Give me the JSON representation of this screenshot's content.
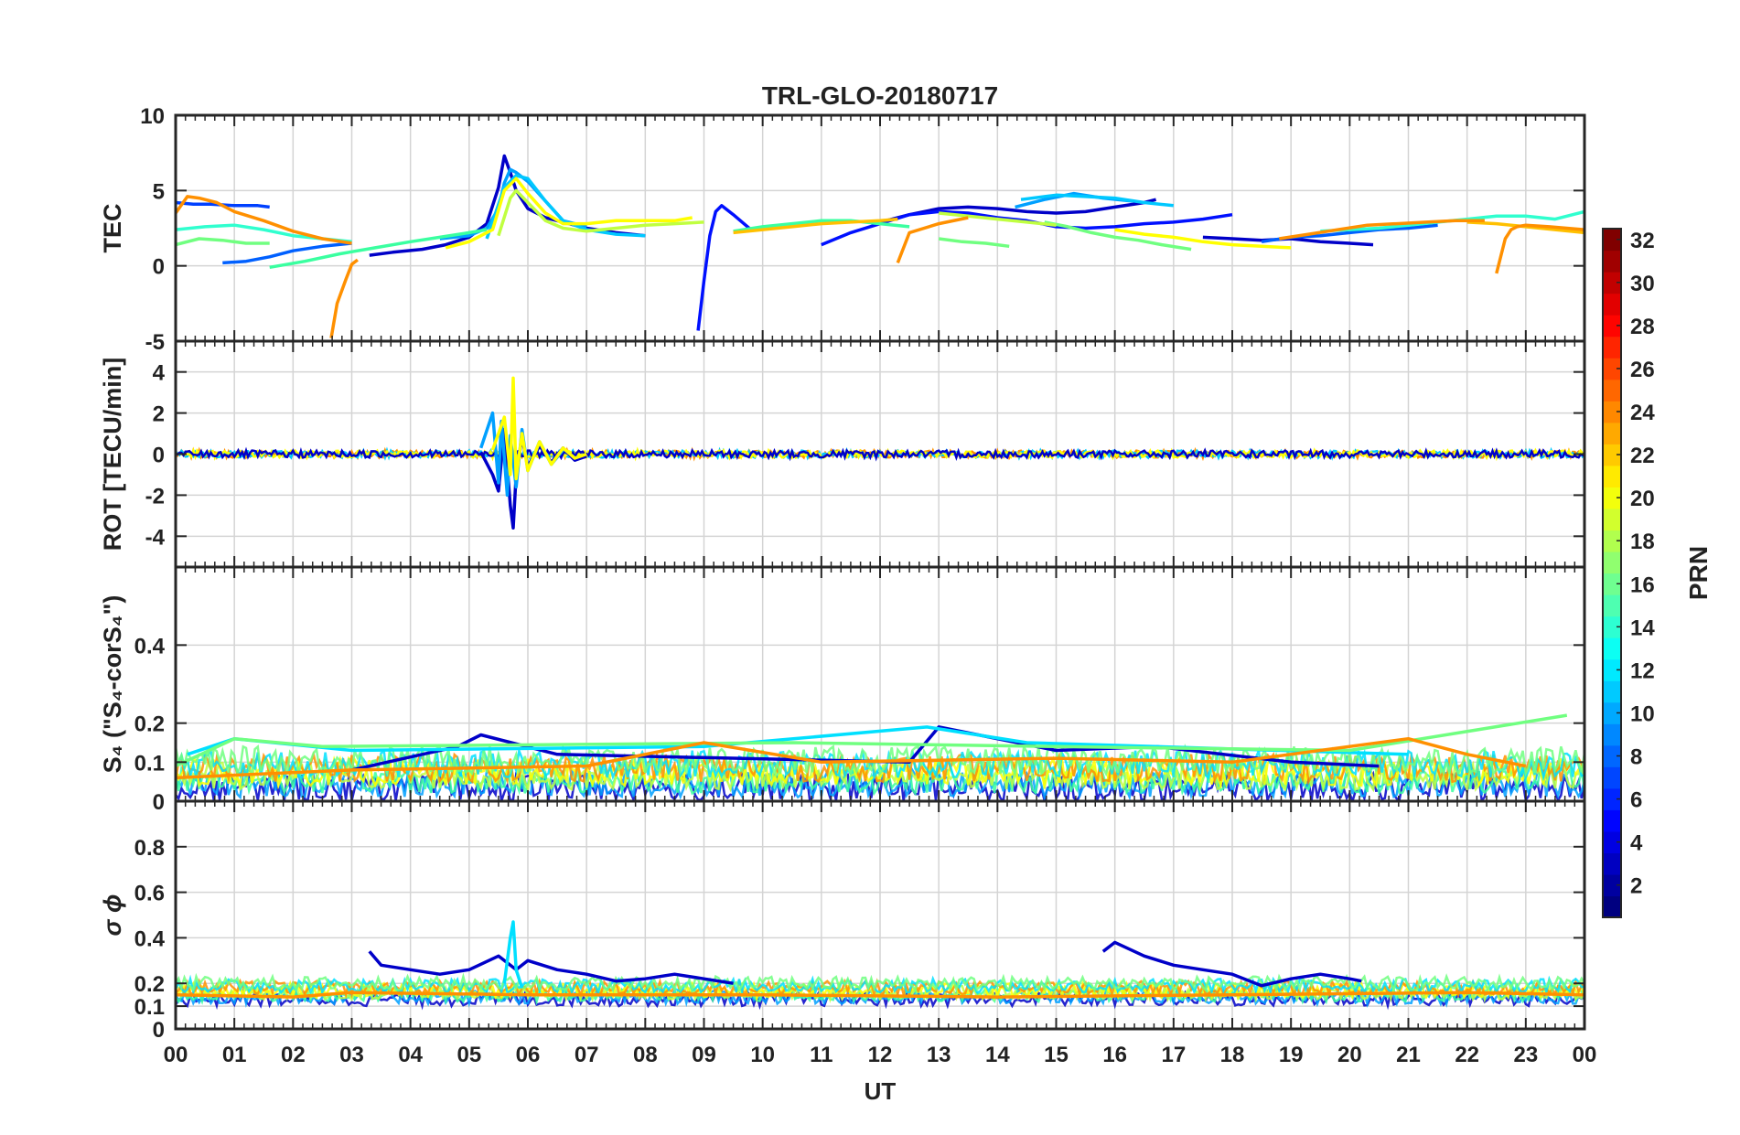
{
  "figure": {
    "title": "TRL-GLO-20180717",
    "xlabel": "UT",
    "x_ticks": [
      "00",
      "01",
      "02",
      "03",
      "04",
      "05",
      "06",
      "07",
      "08",
      "09",
      "10",
      "11",
      "12",
      "13",
      "14",
      "15",
      "16",
      "17",
      "18",
      "19",
      "20",
      "21",
      "22",
      "23",
      "00"
    ]
  },
  "colorbar": {
    "label": "PRN",
    "range": [
      1,
      32
    ],
    "ticks": [
      2,
      4,
      6,
      8,
      10,
      12,
      14,
      16,
      18,
      20,
      22,
      24,
      26,
      28,
      30,
      32
    ],
    "tick_labels": [
      "2",
      "4",
      "6",
      "8",
      "10",
      "12",
      "14",
      "16",
      "18",
      "20",
      "22",
      "24",
      "26",
      "28",
      "30",
      "32"
    ],
    "colormap": "jet"
  },
  "chart_data": [
    {
      "type": "line",
      "panel": "TEC",
      "title": "TRL-GLO-20180717",
      "xlabel": "",
      "ylabel": "TEC",
      "xlim": [
        0,
        24
      ],
      "ylim": [
        -5,
        10
      ],
      "yticks": [
        -5,
        0,
        5,
        10
      ],
      "ytick_labels": [
        "-5",
        "0",
        "5",
        "10"
      ],
      "grid": true,
      "series": [
        {
          "prn": 3,
          "color": "#0000c8",
          "x": [
            3.3,
            3.7,
            4.2,
            4.6,
            5.0,
            5.3,
            5.5,
            5.6,
            5.7,
            5.8,
            6.0,
            6.3,
            6.7,
            7.0,
            7.5,
            8.0
          ],
          "y": [
            0.7,
            0.9,
            1.1,
            1.4,
            1.9,
            2.8,
            5.2,
            7.3,
            6.2,
            5.0,
            3.8,
            3.2,
            2.8,
            2.5,
            2.2,
            2.0
          ]
        },
        {
          "prn": 3,
          "color": "#0000c8",
          "x": [
            12.0,
            12.5,
            13.0,
            13.5,
            14.0,
            14.5,
            15.0,
            15.5,
            16.0,
            16.5,
            16.7
          ],
          "y": [
            2.9,
            3.4,
            3.8,
            3.9,
            3.8,
            3.6,
            3.5,
            3.6,
            3.9,
            4.2,
            4.4
          ]
        },
        {
          "prn": 3,
          "color": "#0000c8",
          "x": [
            17.5,
            18.0,
            18.5,
            19.0,
            19.5,
            20.0,
            20.4
          ],
          "y": [
            1.9,
            1.8,
            1.7,
            1.8,
            1.6,
            1.5,
            1.4
          ]
        },
        {
          "prn": 5,
          "color": "#0010ff",
          "x": [
            8.9,
            9.0,
            9.1,
            9.2,
            9.3,
            9.5,
            9.8
          ],
          "y": [
            -4.3,
            -1.0,
            2.0,
            3.6,
            4.0,
            3.4,
            2.4
          ]
        },
        {
          "prn": 5,
          "color": "#0010ff",
          "x": [
            11.0,
            11.5,
            12.0,
            12.5,
            13.0,
            13.5,
            14.0,
            14.5,
            15.0,
            15.5,
            16.0,
            16.5,
            17.0,
            17.5,
            18.0
          ],
          "y": [
            1.4,
            2.2,
            2.8,
            3.4,
            3.6,
            3.5,
            3.2,
            3.0,
            2.6,
            2.5,
            2.6,
            2.8,
            2.9,
            3.1,
            3.4
          ]
        },
        {
          "prn": 6,
          "color": "#0040ff",
          "x": [
            0.0,
            0.3,
            0.6,
            1.0,
            1.4,
            1.6
          ],
          "y": [
            4.2,
            4.1,
            4.1,
            4.0,
            4.0,
            3.9
          ]
        },
        {
          "prn": 7,
          "color": "#0060ff",
          "x": [
            0.8,
            1.2,
            1.6,
            2.0,
            2.5,
            3.0
          ],
          "y": [
            0.2,
            0.3,
            0.6,
            1.0,
            1.3,
            1.5
          ]
        },
        {
          "prn": 7,
          "color": "#0060ff",
          "x": [
            18.5,
            19.0,
            19.5,
            20.0,
            20.5,
            21.0,
            21.5
          ],
          "y": [
            1.6,
            1.9,
            2.0,
            2.2,
            2.4,
            2.5,
            2.7
          ]
        },
        {
          "prn": 9,
          "color": "#00a0ff",
          "x": [
            4.5,
            5.0,
            5.3,
            5.5,
            5.6,
            5.7,
            5.8,
            6.0,
            6.3,
            6.6,
            7.0
          ],
          "y": [
            1.8,
            2.0,
            2.5,
            3.8,
            5.5,
            6.4,
            6.2,
            5.6,
            4.3,
            3.0,
            2.6
          ]
        },
        {
          "prn": 9,
          "color": "#00a0ff",
          "x": [
            14.3,
            14.8,
            15.3,
            15.8,
            16.3
          ],
          "y": [
            3.9,
            4.4,
            4.8,
            4.5,
            4.3
          ]
        },
        {
          "prn": 11,
          "color": "#00c8ff",
          "x": [
            5.3,
            5.6,
            5.8,
            6.0,
            6.3,
            6.6,
            7.0,
            7.5,
            8.0
          ],
          "y": [
            1.8,
            5.2,
            6.0,
            5.8,
            4.3,
            3.0,
            2.4,
            2.1,
            2.0
          ]
        },
        {
          "prn": 11,
          "color": "#00c8ff",
          "x": [
            14.4,
            15.0,
            15.5,
            16.0,
            16.5,
            17.0
          ],
          "y": [
            4.4,
            4.7,
            4.6,
            4.5,
            4.2,
            4.0
          ]
        },
        {
          "prn": 14,
          "color": "#30ffcf",
          "x": [
            0.0,
            0.5,
            1.0,
            1.5,
            2.0,
            2.5,
            3.0
          ],
          "y": [
            2.4,
            2.6,
            2.7,
            2.4,
            2.0,
            1.8,
            1.6
          ]
        },
        {
          "prn": 14,
          "color": "#30ffcf",
          "x": [
            19.5,
            20.0,
            20.5,
            21.0,
            21.5,
            22.0,
            22.5,
            23.0,
            23.5,
            24.0
          ],
          "y": [
            2.3,
            2.4,
            2.5,
            2.7,
            2.9,
            3.1,
            3.3,
            3.3,
            3.1,
            3.6
          ]
        },
        {
          "prn": 15,
          "color": "#3affa0",
          "x": [
            1.6,
            2.2,
            2.8,
            3.4,
            4.0,
            4.5,
            5.0,
            5.3
          ],
          "y": [
            -0.1,
            0.3,
            0.8,
            1.2,
            1.6,
            1.9,
            2.2,
            2.4
          ]
        },
        {
          "prn": 15,
          "color": "#3affa0",
          "x": [
            9.5,
            10.0,
            10.5,
            11.0,
            11.5,
            12.0,
            12.5
          ],
          "y": [
            2.3,
            2.6,
            2.8,
            3.0,
            3.0,
            2.8,
            2.6
          ]
        },
        {
          "prn": 16,
          "color": "#70ff80",
          "x": [
            0.0,
            0.4,
            0.8,
            1.2,
            1.6
          ],
          "y": [
            1.4,
            1.8,
            1.7,
            1.5,
            1.5
          ]
        },
        {
          "prn": 16,
          "color": "#70ff80",
          "x": [
            13.0,
            13.4,
            13.8,
            14.2
          ],
          "y": [
            1.8,
            1.6,
            1.5,
            1.3
          ]
        },
        {
          "prn": 16,
          "color": "#70ff80",
          "x": [
            14.8,
            15.2,
            15.6,
            16.0,
            16.4,
            16.8,
            17.3
          ],
          "y": [
            2.9,
            2.6,
            2.2,
            1.9,
            1.7,
            1.4,
            1.1
          ]
        },
        {
          "prn": 18,
          "color": "#c0ff40",
          "x": [
            5.5,
            5.7,
            5.8,
            6.0,
            6.3,
            6.6,
            7.0,
            7.5,
            8.0,
            8.5,
            9.0
          ],
          "y": [
            2.0,
            4.5,
            5.0,
            4.2,
            3.0,
            2.5,
            2.3,
            2.5,
            2.7,
            2.8,
            2.9
          ]
        },
        {
          "prn": 18,
          "color": "#c0ff40",
          "x": [
            13.0,
            13.5,
            14.0,
            14.5,
            15.0
          ],
          "y": [
            3.5,
            3.3,
            3.1,
            2.9,
            2.7
          ]
        },
        {
          "prn": 20,
          "color": "#ffff00",
          "x": [
            4.6,
            5.0,
            5.4,
            5.6,
            5.8,
            6.0,
            6.3,
            6.6,
            7.0,
            7.5,
            8.0,
            8.5,
            8.8
          ],
          "y": [
            1.2,
            1.6,
            2.4,
            5.0,
            5.8,
            4.8,
            3.5,
            2.8,
            2.8,
            3.0,
            3.0,
            3.0,
            3.2
          ]
        },
        {
          "prn": 20,
          "color": "#ffff00",
          "x": [
            16.0,
            16.5,
            17.0,
            17.5,
            18.0,
            18.5,
            19.0
          ],
          "y": [
            2.4,
            2.1,
            1.9,
            1.6,
            1.4,
            1.3,
            1.2
          ]
        },
        {
          "prn": 22,
          "color": "#ffc000",
          "x": [
            9.5,
            10.0,
            10.5,
            11.0,
            11.5,
            12.0,
            12.3
          ],
          "y": [
            2.2,
            2.4,
            2.6,
            2.8,
            2.9,
            3.0,
            3.1
          ]
        },
        {
          "prn": 22,
          "color": "#ffc000",
          "x": [
            22.0,
            22.5,
            23.0,
            23.5,
            24.0
          ],
          "y": [
            2.9,
            2.8,
            2.6,
            2.4,
            2.2
          ]
        },
        {
          "prn": 23,
          "color": "#ff9000",
          "x": [
            0.0,
            0.2,
            0.4,
            0.7,
            1.0,
            1.5,
            2.0,
            2.5,
            3.0
          ],
          "y": [
            3.5,
            4.6,
            4.5,
            4.2,
            3.6,
            3.0,
            2.3,
            1.8,
            1.5
          ]
        },
        {
          "prn": 23,
          "color": "#ff9000",
          "x": [
            2.65,
            2.75,
            2.9,
            3.0,
            3.1
          ],
          "y": [
            -4.8,
            -2.5,
            -0.9,
            0.1,
            0.4
          ]
        },
        {
          "prn": 23,
          "color": "#ff9000",
          "x": [
            12.3,
            12.5,
            13.0,
            13.5
          ],
          "y": [
            0.2,
            2.2,
            2.8,
            3.2
          ]
        },
        {
          "prn": 23,
          "color": "#ff9000",
          "x": [
            18.8,
            19.3,
            19.8,
            20.3,
            20.8,
            21.3,
            21.8,
            22.3
          ],
          "y": [
            1.8,
            2.1,
            2.4,
            2.7,
            2.8,
            2.9,
            3.0,
            3.0
          ]
        },
        {
          "prn": 23,
          "color": "#ff9000",
          "x": [
            22.5,
            22.65,
            22.75,
            22.85,
            23.0,
            23.4,
            24.0
          ],
          "y": [
            -0.5,
            1.8,
            2.4,
            2.6,
            2.7,
            2.6,
            2.4
          ]
        }
      ]
    },
    {
      "type": "line",
      "panel": "ROT",
      "ylabel": "ROT [TECU/min]",
      "xlim": [
        0,
        24
      ],
      "ylim": [
        -5.5,
        5.5
      ],
      "yticks": [
        -4,
        -2,
        0,
        2,
        4
      ],
      "ytick_labels": [
        "-4",
        "-2",
        "0",
        "2",
        "4"
      ],
      "grid": true,
      "series": [
        {
          "prn": 3,
          "color": "#0000c8",
          "x": [
            5.2,
            5.4,
            5.5,
            5.6,
            5.7,
            5.75,
            5.8,
            5.9,
            6.0,
            6.2,
            6.4,
            6.6,
            6.8,
            7.0
          ],
          "y": [
            0.1,
            -1.0,
            -1.8,
            1.2,
            -2.5,
            -3.6,
            -1.0,
            0.8,
            -0.6,
            0.4,
            -0.4,
            0.3,
            -0.3,
            -0.1
          ]
        },
        {
          "prn": 9,
          "color": "#00a0ff",
          "x": [
            5.2,
            5.4,
            5.5,
            5.55,
            5.65,
            5.7,
            5.8,
            5.9,
            6.0,
            6.2,
            6.4,
            6.6
          ],
          "y": [
            0.3,
            2.0,
            -1.4,
            1.6,
            -2.0,
            0.9,
            -1.6,
            1.2,
            -0.8,
            0.6,
            -0.5,
            0.2
          ]
        },
        {
          "prn": 20,
          "color": "#ffff00",
          "x": [
            5.4,
            5.6,
            5.7,
            5.75,
            5.8,
            5.9,
            6.0,
            6.2,
            6.4,
            6.6,
            6.8,
            7.0
          ],
          "y": [
            0.2,
            1.8,
            -1.0,
            3.7,
            -1.2,
            1.0,
            -0.8,
            0.6,
            -0.5,
            0.3,
            -0.2,
            0.0
          ]
        }
      ]
    },
    {
      "type": "line",
      "panel": "S4",
      "ylabel": "S₄ (\"S₄-corS₄\")",
      "xlim": [
        0,
        24
      ],
      "ylim": [
        0,
        0.6
      ],
      "yticks": [
        0,
        0.1,
        0.2,
        0.4
      ],
      "ytick_labels": [
        "0",
        "0.1",
        "0.2",
        "0.4"
      ],
      "grid": true,
      "series": [
        {
          "prn": 3,
          "color": "#0000c8",
          "x": [
            3.0,
            4.8,
            5.2,
            6.5,
            12.5,
            13.0,
            15.0,
            16.7,
            19.0,
            20.5
          ],
          "y": [
            0.08,
            0.14,
            0.17,
            0.12,
            0.1,
            0.19,
            0.13,
            0.14,
            0.1,
            0.09
          ]
        },
        {
          "prn": 12,
          "color": "#00e0ff",
          "x": [
            0.2,
            1.0,
            3.0,
            9.0,
            12.8,
            14.5,
            21.0
          ],
          "y": [
            0.12,
            0.16,
            0.13,
            0.14,
            0.19,
            0.15,
            0.12
          ]
        },
        {
          "prn": 16,
          "color": "#70ff80",
          "x": [
            0.0,
            1.0,
            2.5,
            10.5,
            15.0,
            20.0,
            23.7
          ],
          "y": [
            0.09,
            0.16,
            0.14,
            0.15,
            0.14,
            0.13,
            0.22
          ]
        },
        {
          "prn": 23,
          "color": "#ff9000",
          "x": [
            0.0,
            3.0,
            7.0,
            9.0,
            11.0,
            15.0,
            18.0,
            21.0,
            22.0,
            23.0
          ],
          "y": [
            0.06,
            0.08,
            0.09,
            0.15,
            0.1,
            0.11,
            0.1,
            0.16,
            0.12,
            0.09
          ]
        }
      ]
    },
    {
      "type": "line",
      "panel": "sigma_phi",
      "ylabel": "σ ϕ",
      "xlim": [
        0,
        24
      ],
      "ylim": [
        0,
        1.0
      ],
      "yticks": [
        0,
        0.1,
        0.2,
        0.4,
        0.6,
        0.8
      ],
      "ytick_labels": [
        "0",
        "0.1",
        "0.2",
        "0.4",
        "0.6",
        "0.8"
      ],
      "grid": true,
      "series": [
        {
          "prn": 3,
          "color": "#0000c8",
          "x": [
            3.3,
            3.5,
            4.0,
            4.5,
            5.0,
            5.5,
            5.8,
            6.0,
            6.5,
            7.0,
            7.5,
            8.0,
            8.5,
            9.0,
            9.5
          ],
          "y": [
            0.34,
            0.28,
            0.26,
            0.24,
            0.26,
            0.32,
            0.26,
            0.3,
            0.26,
            0.24,
            0.21,
            0.22,
            0.24,
            0.22,
            0.2
          ]
        },
        {
          "prn": 3,
          "color": "#0000c8",
          "x": [
            15.8,
            16.0,
            16.5,
            17.0,
            17.5,
            18.0,
            18.5,
            19.0,
            19.5,
            20.0,
            20.2
          ],
          "y": [
            0.34,
            0.38,
            0.32,
            0.28,
            0.26,
            0.24,
            0.19,
            0.22,
            0.24,
            0.22,
            0.21
          ]
        },
        {
          "prn": 12,
          "color": "#00e0ff",
          "x": [
            5.6,
            5.7,
            5.75,
            5.8,
            5.9
          ],
          "y": [
            0.2,
            0.4,
            0.47,
            0.26,
            0.18
          ]
        },
        {
          "prn": 23,
          "color": "#ff9000",
          "x": [
            0.0,
            2.0,
            3.0,
            6.0,
            10.0,
            14.0,
            18.0,
            22.0,
            24.0
          ],
          "y": [
            0.15,
            0.14,
            0.16,
            0.15,
            0.15,
            0.14,
            0.15,
            0.16,
            0.15
          ]
        }
      ]
    }
  ]
}
